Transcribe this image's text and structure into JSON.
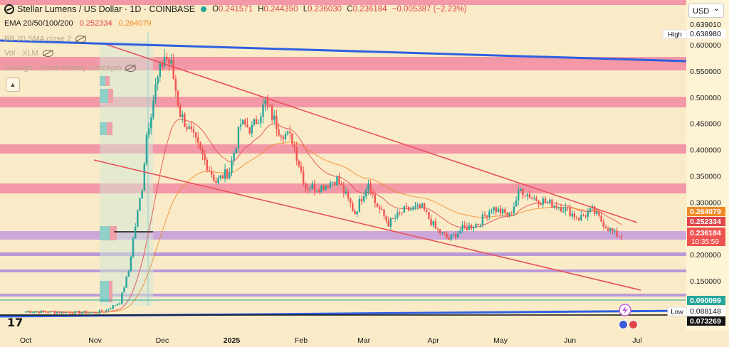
{
  "header": {
    "title": "Stellar Lumens / US Dollar · 1D · COINBASE",
    "open_label": "O",
    "open": "0.241571",
    "high_label": "H",
    "high": "0.244350",
    "low_label": "L",
    "low": "0.236030",
    "close_label": "C",
    "close": "0.236184",
    "change": "−0.005387 (−2.23%)"
  },
  "indicators": {
    "ema_label": "EMA 20/50/100/200",
    "ema_value_1": "0.252334",
    "ema_value_2": "0.264079",
    "bb_label": "BB 20 SMA close 2",
    "vol_label": "Vol · XLM",
    "lux_label": "LuxAlgo - Smart Money Concepts"
  },
  "currency_select": "USD",
  "colors": {
    "background": "#faebc8",
    "zone_pink": "#f08aa0",
    "zone_purple": "#c9a0dc",
    "trendline_red": "#e8505a",
    "trendline_blue": "#2e5fe0",
    "candle_up": "#26a69a",
    "candle_down": "#ef5350",
    "ema_fast": "#e0454a",
    "ema_slow": "#f08a24"
  },
  "chart_data": {
    "type": "candlestick",
    "symbol": "Stellar Lumens / US Dollar",
    "interval": "1D",
    "exchange": "COINBASE",
    "ylim": [
      0.0695,
      0.648
    ],
    "y_ticks": [
      "0.639010",
      "0.600000",
      "0.550000",
      "0.500000",
      "0.450000",
      "0.400000",
      "0.350000",
      "0.300000",
      "0.200000",
      "0.150000",
      "0.090099"
    ],
    "x_labels": [
      "Oct",
      "Nov",
      "Dec",
      "2025",
      "Feb",
      "Mar",
      "Apr",
      "May",
      "Jun",
      "Jul"
    ],
    "price_series": [
      {
        "date": "2024-10-01",
        "value": 0.092
      },
      {
        "date": "2024-10-15",
        "value": 0.091
      },
      {
        "date": "2024-11-01",
        "value": 0.09
      },
      {
        "date": "2024-11-06",
        "value": 0.094
      },
      {
        "date": "2024-11-10",
        "value": 0.105
      },
      {
        "date": "2024-11-12",
        "value": 0.11
      },
      {
        "date": "2024-11-16",
        "value": 0.17
      },
      {
        "date": "2024-11-18",
        "value": 0.23
      },
      {
        "date": "2024-11-22",
        "value": 0.33
      },
      {
        "date": "2024-11-24",
        "value": 0.43
      },
      {
        "date": "2024-11-28",
        "value": 0.52
      },
      {
        "date": "2024-12-02",
        "value": 0.58
      },
      {
        "date": "2024-12-05",
        "value": 0.56
      },
      {
        "date": "2024-12-09",
        "value": 0.47
      },
      {
        "date": "2024-12-14",
        "value": 0.43
      },
      {
        "date": "2024-12-20",
        "value": 0.38
      },
      {
        "date": "2024-12-25",
        "value": 0.34
      },
      {
        "date": "2024-12-31",
        "value": 0.36
      },
      {
        "date": "2025-01-05",
        "value": 0.45
      },
      {
        "date": "2025-01-10",
        "value": 0.44
      },
      {
        "date": "2025-01-16",
        "value": 0.49
      },
      {
        "date": "2025-01-22",
        "value": 0.44
      },
      {
        "date": "2025-01-28",
        "value": 0.42
      },
      {
        "date": "2025-02-03",
        "value": 0.33
      },
      {
        "date": "2025-02-10",
        "value": 0.33
      },
      {
        "date": "2025-02-17",
        "value": 0.345
      },
      {
        "date": "2025-02-25",
        "value": 0.28
      },
      {
        "date": "2025-03-03",
        "value": 0.34
      },
      {
        "date": "2025-03-06",
        "value": 0.3
      },
      {
        "date": "2025-03-12",
        "value": 0.26
      },
      {
        "date": "2025-03-19",
        "value": 0.285
      },
      {
        "date": "2025-03-27",
        "value": 0.29
      },
      {
        "date": "2025-04-02",
        "value": 0.25
      },
      {
        "date": "2025-04-08",
        "value": 0.23
      },
      {
        "date": "2025-04-14",
        "value": 0.25
      },
      {
        "date": "2025-04-21",
        "value": 0.26
      },
      {
        "date": "2025-04-27",
        "value": 0.29
      },
      {
        "date": "2025-05-05",
        "value": 0.275
      },
      {
        "date": "2025-05-10",
        "value": 0.325
      },
      {
        "date": "2025-05-15",
        "value": 0.31
      },
      {
        "date": "2025-05-22",
        "value": 0.3
      },
      {
        "date": "2025-05-29",
        "value": 0.29
      },
      {
        "date": "2025-06-05",
        "value": 0.27
      },
      {
        "date": "2025-06-11",
        "value": 0.285
      },
      {
        "date": "2025-06-17",
        "value": 0.255
      },
      {
        "date": "2025-06-21",
        "value": 0.24
      },
      {
        "date": "2025-06-24",
        "value": 0.236
      }
    ],
    "price_labels": {
      "high": {
        "label": "High",
        "value": "0.638980"
      },
      "low": {
        "label": "Low",
        "value": "0.088148"
      },
      "ema_slow": "0.264079",
      "ema_fast": "0.252334",
      "last": "0.236184",
      "countdown": "10:35:59",
      "bottom": "0.073269"
    }
  }
}
